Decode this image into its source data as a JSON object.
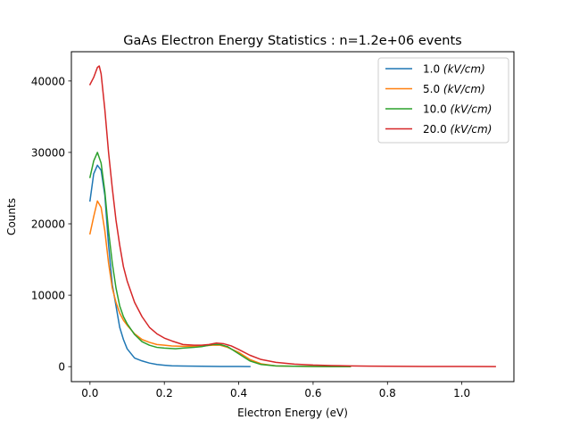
{
  "chart_data": {
    "type": "line",
    "title": "GaAs Electron Energy Statistics : n=1.2e+06 events",
    "xlabel": "Electron Energy (eV)",
    "ylabel": "Counts",
    "xlim": [
      -0.05,
      1.14
    ],
    "ylim": [
      -2100,
      44100
    ],
    "xticks": [
      "0.0",
      "0.2",
      "0.4",
      "0.6",
      "0.8",
      "1.0"
    ],
    "xtick_values": [
      0.0,
      0.2,
      0.4,
      0.6,
      0.8,
      1.0
    ],
    "yticks": [
      "0",
      "10000",
      "20000",
      "30000",
      "40000"
    ],
    "ytick_values": [
      0,
      10000,
      20000,
      30000,
      40000
    ],
    "grid": false,
    "legend_position": "top-right",
    "series": [
      {
        "name": "1.0",
        "units": "(kV/cm)",
        "color": "#1f77b4",
        "x": [
          0.0,
          0.01,
          0.02,
          0.03,
          0.04,
          0.05,
          0.06,
          0.07,
          0.08,
          0.09,
          0.1,
          0.12,
          0.14,
          0.16,
          0.18,
          0.2,
          0.22,
          0.25,
          0.3,
          0.35,
          0.4,
          0.43
        ],
        "y": [
          23200,
          27000,
          28200,
          27500,
          24000,
          17000,
          11500,
          8500,
          5500,
          3800,
          2500,
          1200,
          800,
          500,
          300,
          200,
          120,
          80,
          50,
          30,
          20,
          10
        ]
      },
      {
        "name": "5.0",
        "units": "(kV/cm)",
        "color": "#ff7f0e",
        "x": [
          0.0,
          0.01,
          0.02,
          0.03,
          0.04,
          0.05,
          0.06,
          0.07,
          0.08,
          0.09,
          0.1,
          0.12,
          0.14,
          0.16,
          0.18,
          0.2,
          0.22,
          0.25,
          0.28,
          0.3,
          0.33,
          0.35,
          0.37,
          0.4,
          0.43,
          0.46,
          0.5,
          0.55,
          0.6,
          0.65,
          0.7
        ],
        "y": [
          18600,
          21000,
          23200,
          22300,
          19000,
          14500,
          11000,
          9000,
          7500,
          6500,
          5800,
          4600,
          3800,
          3400,
          3100,
          3000,
          2900,
          2850,
          2850,
          2900,
          3000,
          3000,
          2700,
          2000,
          1000,
          400,
          100,
          50,
          20,
          10,
          5
        ]
      },
      {
        "name": "10.0",
        "units": "(kV/cm)",
        "color": "#2ca02c",
        "x": [
          0.0,
          0.01,
          0.02,
          0.03,
          0.04,
          0.05,
          0.06,
          0.07,
          0.08,
          0.09,
          0.1,
          0.12,
          0.14,
          0.16,
          0.18,
          0.2,
          0.23,
          0.25,
          0.28,
          0.3,
          0.33,
          0.35,
          0.37,
          0.4,
          0.43,
          0.46,
          0.5,
          0.55,
          0.6,
          0.65,
          0.7
        ],
        "y": [
          26500,
          28800,
          30000,
          28500,
          24500,
          19000,
          14500,
          11000,
          8500,
          7000,
          6000,
          4500,
          3500,
          3000,
          2700,
          2600,
          2500,
          2600,
          2700,
          2800,
          3100,
          3100,
          2800,
          1800,
          800,
          300,
          100,
          50,
          20,
          10,
          5
        ]
      },
      {
        "name": "20.0",
        "units": "(kV/cm)",
        "color": "#d62728",
        "x": [
          0.0,
          0.01,
          0.02,
          0.025,
          0.03,
          0.04,
          0.05,
          0.06,
          0.07,
          0.08,
          0.09,
          0.1,
          0.12,
          0.14,
          0.16,
          0.18,
          0.2,
          0.22,
          0.25,
          0.28,
          0.3,
          0.32,
          0.34,
          0.36,
          0.38,
          0.4,
          0.43,
          0.46,
          0.5,
          0.55,
          0.6,
          0.65,
          0.7,
          0.75,
          0.8,
          0.9,
          1.0,
          1.09
        ],
        "y": [
          39500,
          40500,
          41900,
          42100,
          41000,
          36000,
          30000,
          25000,
          20500,
          17000,
          14000,
          12000,
          9000,
          7000,
          5500,
          4600,
          4000,
          3600,
          3100,
          3000,
          3000,
          3100,
          3300,
          3200,
          2900,
          2400,
          1600,
          1000,
          600,
          350,
          220,
          150,
          100,
          70,
          50,
          30,
          15,
          10
        ]
      }
    ]
  }
}
